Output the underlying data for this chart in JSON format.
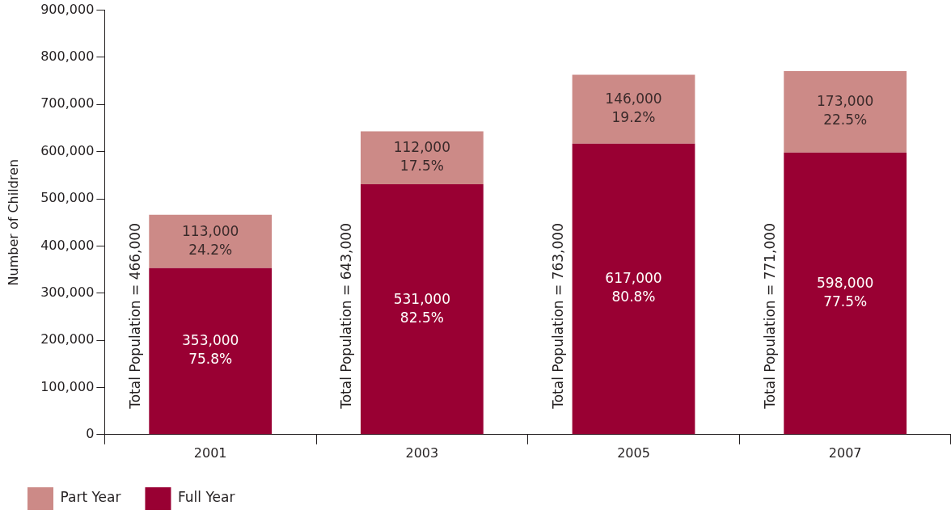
{
  "chart_data": {
    "type": "bar",
    "stacked": true,
    "ylabel": "Number of Children",
    "categories": [
      "2001",
      "2003",
      "2005",
      "2007"
    ],
    "series": [
      {
        "name": "Full Year",
        "color": "#990033",
        "values": [
          353000,
          531000,
          617000,
          598000
        ],
        "value_labels": [
          "353,000\n75.8%",
          "531,000\n82.5%",
          "617,000\n80.8%",
          "598,000\n77.5%"
        ]
      },
      {
        "name": "Part Year",
        "color": "#cc8a87",
        "values": [
          113000,
          112000,
          146000,
          173000
        ],
        "value_labels": [
          "113,000\n24.2%",
          "112,000\n17.5%",
          "146,000\n19.2%",
          "173,000\n22.5%"
        ]
      }
    ],
    "totals": [
      "Total Population = 466,000",
      "Total Population = 643,000",
      "Total Population = 763,000",
      "Total Population = 771,000"
    ],
    "ylim": [
      0,
      900000
    ],
    "yticks": [
      {
        "value": 0,
        "label": "0"
      },
      {
        "value": 100000,
        "label": "100,000"
      },
      {
        "value": 200000,
        "label": "200,000"
      },
      {
        "value": 300000,
        "label": "300,000"
      },
      {
        "value": 400000,
        "label": "400,000"
      },
      {
        "value": 500000,
        "label": "500,000"
      },
      {
        "value": 600000,
        "label": "600,000"
      },
      {
        "value": 700000,
        "label": "700,000"
      },
      {
        "value": 800000,
        "label": "800,000"
      },
      {
        "value": 900000,
        "label": "900,000"
      }
    ],
    "legend": "bottom"
  }
}
